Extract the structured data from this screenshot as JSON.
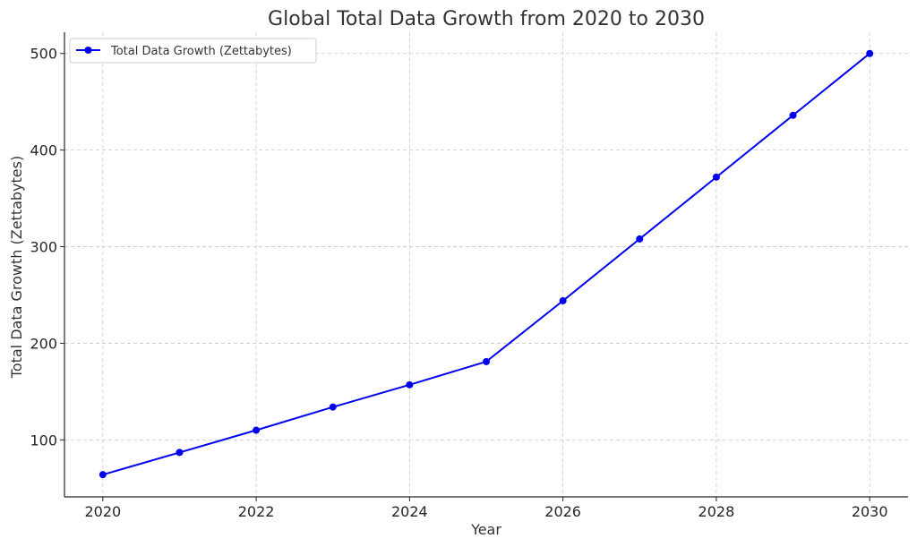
{
  "chart_data": {
    "type": "line",
    "title": "Global Total Data Growth from 2020 to 2030",
    "xlabel": "Year",
    "ylabel": "Total Data Growth (Zettabytes)",
    "x": [
      2020,
      2021,
      2022,
      2023,
      2024,
      2025,
      2026,
      2027,
      2028,
      2029,
      2030
    ],
    "series": [
      {
        "name": "Total Data Growth (Zettabytes)",
        "color": "#0000ee",
        "marker": "circle",
        "values": [
          64,
          87,
          110,
          134,
          157,
          181,
          244,
          308,
          372,
          436,
          500
        ]
      }
    ],
    "xlim": [
      2019.5,
      2030.5
    ],
    "ylim": [
      41,
      522
    ],
    "xticks": [
      2020,
      2022,
      2024,
      2026,
      2028,
      2030
    ],
    "yticks": [
      100,
      200,
      300,
      400,
      500
    ],
    "grid": true,
    "legend_position": "top-left"
  }
}
